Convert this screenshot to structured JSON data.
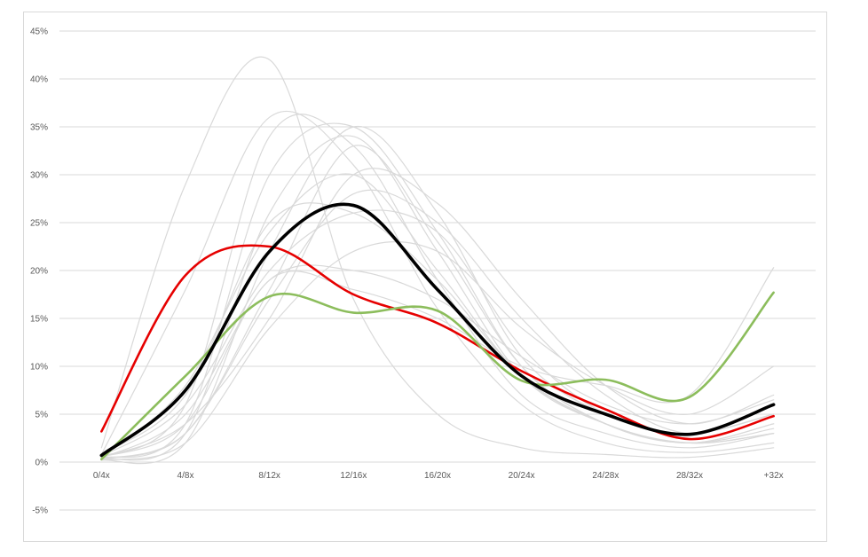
{
  "chart_data": {
    "type": "line",
    "title": "",
    "xlabel": "",
    "ylabel": "",
    "categories": [
      "0/4x",
      "4/8x",
      "8/12x",
      "12/16x",
      "16/20x",
      "20/24x",
      "24/28x",
      "28/32x",
      "+32x"
    ],
    "y_ticks": [
      "-5%",
      "0%",
      "5%",
      "10%",
      "15%",
      "20%",
      "25%",
      "30%",
      "35%",
      "40%",
      "45%"
    ],
    "ylim": [
      -5,
      45
    ],
    "y_unit": "%",
    "grid": true,
    "legend": "none",
    "series": [
      {
        "values": [
          1.5,
          29,
          42,
          17,
          5,
          1.5,
          0.8,
          0.5,
          1.5
        ],
        "color": "#d9d9d9",
        "emphasis": false
      },
      {
        "values": [
          0.8,
          18,
          36,
          31,
          16,
          6,
          2,
          1,
          2
        ],
        "color": "#d9d9d9",
        "emphasis": false
      },
      {
        "values": [
          0.5,
          6,
          34,
          33,
          19,
          7,
          3,
          1.5,
          3
        ],
        "color": "#d9d9d9",
        "emphasis": false
      },
      {
        "values": [
          0.4,
          4,
          30,
          35,
          24,
          10,
          4,
          2,
          4
        ],
        "color": "#d9d9d9",
        "emphasis": false
      },
      {
        "values": [
          0.3,
          3,
          26,
          34,
          22,
          9,
          4,
          2,
          3.5
        ],
        "color": "#d9d9d9",
        "emphasis": false
      },
      {
        "values": [
          0.2,
          2,
          22,
          35,
          26,
          11,
          5,
          3,
          5
        ],
        "color": "#d9d9d9",
        "emphasis": false
      },
      {
        "values": [
          0.3,
          3,
          18,
          33,
          23,
          10,
          4,
          2,
          3
        ],
        "color": "#d9d9d9",
        "emphasis": false
      },
      {
        "values": [
          0.5,
          8,
          24,
          30,
          20,
          9,
          4,
          2,
          4
        ],
        "color": "#d9d9d9",
        "emphasis": false
      },
      {
        "values": [
          0.6,
          6,
          20,
          26,
          24,
          12,
          5,
          3,
          5
        ],
        "color": "#d9d9d9",
        "emphasis": false
      },
      {
        "values": [
          0.4,
          5,
          19,
          20,
          17,
          11,
          6,
          4,
          6.5
        ],
        "color": "#d9d9d9",
        "emphasis": false
      },
      {
        "values": [
          0.5,
          4,
          15,
          30,
          27,
          17,
          8,
          4,
          7
        ],
        "color": "#d9d9d9",
        "emphasis": false
      },
      {
        "values": [
          0.3,
          3,
          17,
          28,
          25,
          15,
          7,
          3,
          6
        ],
        "color": "#d9d9d9",
        "emphasis": false
      },
      {
        "values": [
          0.2,
          2,
          14,
          22,
          22,
          14,
          8,
          5,
          10
        ],
        "color": "#d9d9d9",
        "emphasis": false
      },
      {
        "values": [
          0.5,
          4,
          19,
          18,
          15,
          10,
          8,
          7,
          20.3
        ],
        "color": "#d9d9d9",
        "emphasis": false
      },
      {
        "values": [
          0.8,
          7,
          25,
          26,
          19,
          9,
          4,
          2,
          3
        ],
        "color": "#d9d9d9",
        "emphasis": false
      },
      {
        "values": [
          3.2,
          19.5,
          22.5,
          17.5,
          14.5,
          9.5,
          5.5,
          2.4,
          4.8
        ],
        "color": "#e60000",
        "emphasis": true
      },
      {
        "values": [
          0.3,
          9,
          17.3,
          15.6,
          15.8,
          8.5,
          8.6,
          6.8,
          17.7
        ],
        "color": "#8cbd5c",
        "emphasis": true
      },
      {
        "values": [
          0.7,
          7.5,
          22,
          26.8,
          18,
          9,
          5,
          2.9,
          6
        ],
        "color": "#000000",
        "emphasis": true
      }
    ]
  }
}
